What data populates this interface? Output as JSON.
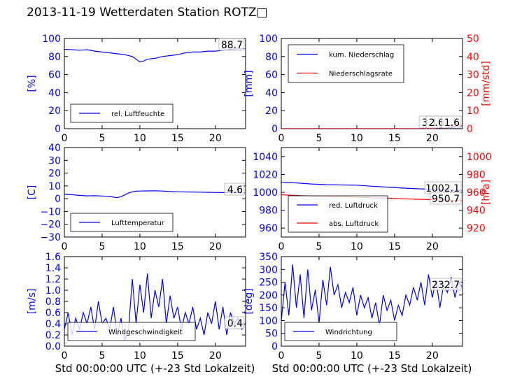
{
  "title": "2013-11-19 Wetterdaten Station ROTZ□",
  "chart_data": [
    {
      "type": "line",
      "panel": "humidity",
      "xlim": [
        0,
        24
      ],
      "xticks": [
        "0",
        "5",
        "10",
        "15",
        "20"
      ],
      "ylabel": "[%]",
      "ylim": [
        0,
        100
      ],
      "yticks": [
        "0",
        "20",
        "40",
        "60",
        "80",
        "100"
      ],
      "grid": false,
      "legend_position": "lower-left",
      "value_label": "88.7",
      "series": [
        {
          "name": "rel. Luftfeuchte",
          "color": "#0000ff",
          "x": [
            0,
            1,
            2,
            3,
            4,
            5,
            6,
            7,
            8,
            9,
            9.5,
            10,
            10.5,
            11,
            12,
            13,
            14,
            15,
            16,
            17,
            18,
            19,
            20,
            21,
            22,
            23,
            23.9
          ],
          "y": [
            88,
            87.5,
            87,
            87.5,
            86,
            85,
            84,
            83,
            82,
            80,
            77,
            74,
            75,
            77,
            78,
            80,
            81,
            82,
            84,
            85,
            85,
            86,
            86,
            87,
            88,
            88.5,
            88.7
          ]
        }
      ]
    },
    {
      "type": "line",
      "panel": "precipitation",
      "xlim": [
        0,
        24
      ],
      "xticks": [
        "0",
        "5",
        "10",
        "15",
        "20"
      ],
      "ylabel": "[mm]",
      "ylim": [
        0,
        100
      ],
      "yticks": [
        "0",
        "20",
        "40",
        "60",
        "80",
        "100"
      ],
      "ylabel2": "[mm/std]",
      "ylim2": [
        0,
        50
      ],
      "yticks2": [
        "0",
        "10",
        "20",
        "30",
        "40",
        "50"
      ],
      "legend_position": "upper-left",
      "value_labels": [
        "3.1",
        "2.6",
        "1.6"
      ],
      "series": [
        {
          "name": "kum. Niederschlag",
          "color": "#0000ff",
          "axis": "left",
          "x": [
            0,
            18,
            19,
            20,
            21,
            22,
            23,
            23.9
          ],
          "y": [
            0,
            0,
            0.1,
            0.3,
            0.8,
            1.3,
            2.0,
            3.1
          ]
        },
        {
          "name": "Niederschlagsrate",
          "color": "#ff0000",
          "axis": "right",
          "x": [
            0,
            18.5,
            18.8,
            19.1,
            20,
            21,
            22,
            22.5,
            23,
            23.5,
            23.9
          ],
          "y": [
            0,
            0,
            0.6,
            0,
            0,
            0.8,
            0.5,
            1.8,
            1.0,
            2.2,
            1.6
          ]
        }
      ]
    },
    {
      "type": "line",
      "panel": "temperature",
      "xlim": [
        0,
        24
      ],
      "xticks": [
        "0",
        "5",
        "10",
        "15",
        "20"
      ],
      "ylabel": "[C]",
      "ylim": [
        -30,
        40
      ],
      "yticks": [
        "−30",
        "−20",
        "−10",
        "0",
        "10",
        "20",
        "30",
        "40"
      ],
      "legend_position": "lower-left",
      "value_label": "4.6",
      "series": [
        {
          "name": "Lufttemperatur",
          "color": "#0000ff",
          "x": [
            0,
            1,
            2,
            3,
            4,
            5,
            6,
            6.5,
            7,
            7.5,
            8,
            8.5,
            9,
            9.5,
            10,
            11,
            12,
            13,
            14,
            15,
            16,
            17,
            18,
            19,
            20,
            21,
            22,
            23,
            23.9
          ],
          "y": [
            3.4,
            3.1,
            2.6,
            2.2,
            2.3,
            2.1,
            1.8,
            1.2,
            0.8,
            1.6,
            3.0,
            4.4,
            5.4,
            5.9,
            6.0,
            6.1,
            6.2,
            6.0,
            5.6,
            5.4,
            5.3,
            5.2,
            5.1,
            5.0,
            4.9,
            4.8,
            4.7,
            4.6,
            4.6
          ]
        }
      ]
    },
    {
      "type": "line",
      "panel": "pressure",
      "xlim": [
        0,
        24
      ],
      "xticks": [
        "0",
        "5",
        "10",
        "15",
        "20"
      ],
      "ylim": [
        950,
        1050
      ],
      "yticks": [
        "960",
        "980",
        "1000",
        "1020",
        "1040"
      ],
      "ylabel2": "[hPa]",
      "ylim2": [
        910,
        1010
      ],
      "yticks2": [
        "920",
        "940",
        "960",
        "980",
        "1000"
      ],
      "legend_position": "lower-left",
      "value_labels": [
        "1002.1",
        "950.7"
      ],
      "series": [
        {
          "name": "red. Luftdruck",
          "color": "#0000ff",
          "axis": "left",
          "x": [
            0,
            2,
            4,
            6,
            8,
            10,
            12,
            14,
            16,
            18,
            20,
            22,
            23.9
          ],
          "y": [
            1011.5,
            1010.5,
            1009.3,
            1008.5,
            1008.2,
            1008.0,
            1006.8,
            1005.8,
            1004.8,
            1004.0,
            1003.2,
            1002.6,
            1002.1
          ]
        },
        {
          "name": "abs. Luftdruck",
          "color": "#ff0000",
          "axis": "right",
          "x": [
            0,
            2,
            4,
            6,
            8,
            10,
            12,
            14,
            16,
            18,
            20,
            22,
            23.9
          ],
          "y": [
            957.3,
            956.4,
            955.8,
            955.4,
            955.0,
            954.5,
            953.9,
            953.4,
            952.8,
            952.3,
            951.7,
            951.2,
            950.7
          ]
        }
      ]
    },
    {
      "type": "line",
      "panel": "wind-speed",
      "xlim": [
        0,
        24
      ],
      "xticks": [
        "0",
        "5",
        "10",
        "15",
        "20"
      ],
      "xlabel": "Std 00:00:00 UTC (+-23 Std Lokalzeit)",
      "ylabel": "[m/s]",
      "ylim": [
        0,
        1.6
      ],
      "yticks": [
        "0.0",
        "0.2",
        "0.4",
        "0.6",
        "0.8",
        "1.0",
        "1.2",
        "1.4",
        "1.6"
      ],
      "legend_position": "lower-center",
      "value_label": "0.4",
      "series": [
        {
          "name": "Windgeschwindigkeit",
          "color": "#0000ff",
          "x": [
            0,
            0.5,
            1,
            1.5,
            2,
            2.5,
            3,
            3.5,
            4,
            4.5,
            5,
            5.5,
            6,
            6.5,
            7,
            7.5,
            8,
            8.5,
            9,
            9.5,
            10,
            10.5,
            11,
            11.5,
            12,
            12.5,
            13,
            13.5,
            14,
            14.5,
            15,
            15.5,
            16,
            16.5,
            17,
            17.5,
            18,
            18.5,
            19,
            19.5,
            20,
            20.5,
            21,
            21.5,
            22,
            22.5,
            23,
            23.5,
            23.9
          ],
          "y": [
            0.3,
            0.6,
            0.2,
            0.5,
            0.3,
            0.6,
            0.4,
            0.7,
            0.3,
            0.8,
            0.4,
            0.5,
            0.3,
            0.7,
            0.2,
            0.5,
            0.1,
            0.3,
            1.2,
            0.4,
            1.1,
            0.6,
            1.3,
            0.5,
            1.0,
            0.7,
            1.2,
            0.4,
            0.9,
            0.5,
            0.7,
            0.3,
            0.6,
            0.4,
            0.7,
            0.3,
            0.5,
            0.2,
            0.6,
            0.4,
            0.8,
            0.3,
            0.7,
            0.2,
            0.6,
            0.4,
            0.5,
            0.3,
            0.4
          ]
        }
      ]
    },
    {
      "type": "line",
      "panel": "wind-direction",
      "xlim": [
        0,
        24
      ],
      "xticks": [
        "0",
        "5",
        "10",
        "15",
        "20"
      ],
      "xlabel": "Std 00:00:00 UTC (+-23 Std Lokalzeit)",
      "ylabel": "[deg]",
      "ylim": [
        0,
        350
      ],
      "yticks": [
        "0",
        "50",
        "100",
        "150",
        "200",
        "250",
        "300",
        "350"
      ],
      "legend_position": "lower-center",
      "value_label": "232.7",
      "series": [
        {
          "name": "Windrichtung",
          "color": "#0000ff",
          "x": [
            0,
            0.5,
            1,
            1.5,
            2,
            2.5,
            3,
            3.5,
            4,
            4.5,
            5,
            5.5,
            6,
            6.5,
            7,
            7.5,
            8,
            8.5,
            9,
            9.5,
            10,
            10.5,
            11,
            11.5,
            12,
            12.5,
            13,
            13.5,
            14,
            14.5,
            15,
            15.5,
            16,
            16.5,
            17,
            17.5,
            18,
            18.5,
            19,
            19.5,
            20,
            20.5,
            21,
            21.5,
            22,
            22.5,
            23,
            23.5,
            23.9
          ],
          "y": [
            100,
            250,
            120,
            320,
            150,
            280,
            110,
            300,
            140,
            220,
            90,
            260,
            160,
            310,
            200,
            240,
            150,
            210,
            170,
            230,
            120,
            200,
            150,
            190,
            110,
            170,
            80,
            200,
            140,
            180,
            100,
            160,
            120,
            200,
            160,
            230,
            180,
            250,
            160,
            280,
            190,
            260,
            150,
            240,
            210,
            270,
            190,
            250,
            232.7
          ]
        }
      ]
    }
  ]
}
